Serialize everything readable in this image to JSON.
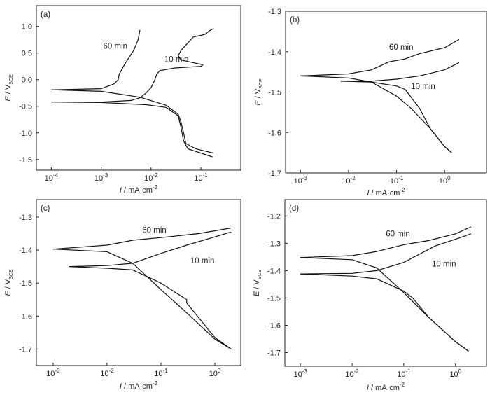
{
  "chart_data": [
    {
      "type": "line",
      "panel_label": "(a)",
      "xlabel": {
        "symbol": "I",
        "unit": " / mA·cm",
        "exp": "-2"
      },
      "ylabel": {
        "symbol": "E",
        "unit": " / V",
        "sub": "SCE"
      },
      "xscale": "log",
      "xlim_log10": [
        -4.3,
        -0.2
      ],
      "ylim": [
        -1.7,
        1.39
      ],
      "x_ticks": [
        {
          "log": -4,
          "base": "10",
          "exp": "-4"
        },
        {
          "log": -3,
          "base": "10",
          "exp": "-3"
        },
        {
          "log": -2,
          "base": "10",
          "exp": "-2"
        },
        {
          "log": -1,
          "base": "10",
          "exp": "-1"
        }
      ],
      "y_ticks": [
        {
          "v": 1.0,
          "label": "1.0"
        },
        {
          "v": 0.5,
          "label": "0.5"
        },
        {
          "v": 0.0,
          "label": "0.0"
        },
        {
          "v": -0.5,
          "label": "-0.5"
        },
        {
          "v": -1.0,
          "label": "-1.0"
        },
        {
          "v": -1.5,
          "label": "-1.5"
        }
      ],
      "series": [
        {
          "name": "60 min",
          "label_at": [
            0.0011,
            0.58
          ],
          "points": [
            [
              0.006,
              0.93
            ],
            [
              0.0055,
              0.75
            ],
            [
              0.0045,
              0.55
            ],
            [
              0.003,
              0.3
            ],
            [
              0.0023,
              0.1
            ],
            [
              0.0022,
              0.0
            ],
            [
              0.0018,
              -0.08
            ],
            [
              0.001,
              -0.17
            ],
            [
              0.0001,
              -0.19
            ],
            [
              0.001,
              -0.22
            ],
            [
              0.006,
              -0.33
            ],
            [
              0.02,
              -0.48
            ],
            [
              0.035,
              -0.65
            ],
            [
              0.04,
              -0.8
            ],
            [
              0.045,
              -1.0
            ],
            [
              0.05,
              -1.2
            ],
            [
              0.08,
              -1.3
            ],
            [
              0.18,
              -1.38
            ]
          ]
        },
        {
          "name": "10 min",
          "label_at": [
            0.0185,
            0.33
          ],
          "points": [
            [
              0.18,
              0.96
            ],
            [
              0.15,
              0.92
            ],
            [
              0.12,
              0.85
            ],
            [
              0.07,
              0.8
            ],
            [
              0.05,
              0.65
            ],
            [
              0.04,
              0.55
            ],
            [
              0.035,
              0.45
            ],
            [
              0.04,
              0.37
            ],
            [
              0.07,
              0.32
            ],
            [
              0.11,
              0.28
            ],
            [
              0.1,
              0.25
            ],
            [
              0.03,
              0.22
            ],
            [
              0.015,
              0.17
            ],
            [
              0.013,
              0.1
            ],
            [
              0.012,
              0.0
            ],
            [
              0.01,
              -0.15
            ],
            [
              0.008,
              -0.25
            ],
            [
              0.006,
              -0.34
            ],
            [
              0.004,
              -0.39
            ],
            [
              0.001,
              -0.42
            ],
            [
              0.0001,
              -0.42
            ],
            [
              0.001,
              -0.43
            ],
            [
              0.008,
              -0.47
            ],
            [
              0.02,
              -0.52
            ],
            [
              0.035,
              -0.68
            ],
            [
              0.04,
              -0.9
            ],
            [
              0.045,
              -1.15
            ],
            [
              0.055,
              -1.3
            ],
            [
              0.17,
              -1.45
            ]
          ]
        }
      ]
    },
    {
      "type": "line",
      "panel_label": "(b)",
      "xlabel": {
        "symbol": "I",
        "unit": " / mA·cm",
        "exp": "-2"
      },
      "ylabel": {
        "symbol": "E",
        "unit": " / V",
        "sub": "SCE"
      },
      "xscale": "log",
      "xlim_log10": [
        -3.31,
        0.87
      ],
      "ylim": [
        -1.7,
        -1.3
      ],
      "x_ticks": [
        {
          "log": -3,
          "base": "10",
          "exp": "-3"
        },
        {
          "log": -2,
          "base": "10",
          "exp": "-2"
        },
        {
          "log": -1,
          "base": "10",
          "exp": "-1"
        },
        {
          "log": 0,
          "base": "10",
          "exp": "0"
        }
      ],
      "y_ticks": [
        {
          "v": -1.3,
          "label": "-1.3"
        },
        {
          "v": -1.4,
          "label": "-1.4"
        },
        {
          "v": -1.5,
          "label": "-1.5"
        },
        {
          "v": -1.6,
          "label": "-1.6"
        },
        {
          "v": -1.7,
          "label": "-1.7"
        }
      ],
      "series": [
        {
          "name": "60 min",
          "label_at": [
            0.07,
            -1.395
          ],
          "points": [
            [
              2,
              -1.37
            ],
            [
              1,
              -1.39
            ],
            [
              0.3,
              -1.405
            ],
            [
              0.15,
              -1.418
            ],
            [
              0.07,
              -1.425
            ],
            [
              0.03,
              -1.445
            ],
            [
              0.01,
              -1.455
            ],
            [
              0.001,
              -1.46
            ],
            [
              0.01,
              -1.465
            ],
            [
              0.03,
              -1.475
            ],
            [
              0.1,
              -1.51
            ],
            [
              0.2,
              -1.54
            ],
            [
              0.5,
              -1.59
            ],
            [
              1,
              -1.635
            ],
            [
              1.4,
              -1.65
            ]
          ]
        },
        {
          "name": "10 min",
          "label_at": [
            0.2,
            -1.492
          ],
          "points": [
            [
              2,
              -1.427
            ],
            [
              1,
              -1.445
            ],
            [
              0.3,
              -1.46
            ],
            [
              0.1,
              -1.468
            ],
            [
              0.03,
              -1.473
            ],
            [
              0.007,
              -1.473
            ],
            [
              0.03,
              -1.475
            ],
            [
              0.1,
              -1.485
            ],
            [
              0.15,
              -1.493
            ],
            [
              0.3,
              -1.54
            ],
            [
              0.5,
              -1.59
            ],
            [
              1,
              -1.635
            ],
            [
              1.4,
              -1.65
            ]
          ]
        }
      ]
    },
    {
      "type": "line",
      "panel_label": "(c)",
      "xlabel": {
        "symbol": "I",
        "unit": " / mA·cm",
        "exp": "-2"
      },
      "ylabel": {
        "symbol": "E",
        "unit": " / V",
        "sub": "SCE"
      },
      "xscale": "log",
      "xlim_log10": [
        -3.31,
        0.48
      ],
      "ylim": [
        -1.75,
        -1.247
      ],
      "x_ticks": [
        {
          "log": -3,
          "base": "10",
          "exp": "-3"
        },
        {
          "log": -2,
          "base": "10",
          "exp": "-2"
        },
        {
          "log": -1,
          "base": "10",
          "exp": "-1"
        },
        {
          "log": 0,
          "base": "10",
          "exp": "0"
        }
      ],
      "y_ticks": [
        {
          "v": -1.3,
          "label": "-1.3"
        },
        {
          "v": -1.4,
          "label": "-1.4"
        },
        {
          "v": -1.5,
          "label": "-1.5"
        },
        {
          "v": -1.6,
          "label": "-1.6"
        },
        {
          "v": -1.7,
          "label": "-1.7"
        }
      ],
      "series": [
        {
          "name": "60 min",
          "label_at": [
            0.045,
            -1.348
          ],
          "points": [
            [
              2,
              -1.333
            ],
            [
              0.5,
              -1.35
            ],
            [
              0.1,
              -1.362
            ],
            [
              0.03,
              -1.37
            ],
            [
              0.01,
              -1.385
            ],
            [
              0.001,
              -1.397
            ],
            [
              0.01,
              -1.405
            ],
            [
              0.03,
              -1.44
            ],
            [
              0.1,
              -1.52
            ],
            [
              0.3,
              -1.59
            ],
            [
              1,
              -1.67
            ],
            [
              2,
              -1.7
            ]
          ]
        },
        {
          "name": "10 min",
          "label_at": [
            0.35,
            -1.44
          ],
          "points": [
            [
              2,
              -1.345
            ],
            [
              1,
              -1.36
            ],
            [
              0.3,
              -1.385
            ],
            [
              0.1,
              -1.41
            ],
            [
              0.03,
              -1.44
            ],
            [
              0.01,
              -1.447
            ],
            [
              0.002,
              -1.45
            ],
            [
              0.01,
              -1.455
            ],
            [
              0.03,
              -1.46
            ],
            [
              0.1,
              -1.5
            ],
            [
              0.3,
              -1.55
            ],
            [
              0.3,
              -1.56
            ],
            [
              1,
              -1.665
            ],
            [
              2,
              -1.7
            ]
          ]
        }
      ]
    },
    {
      "type": "line",
      "panel_label": "(d)",
      "xlabel": {
        "symbol": "I",
        "unit": " / mA·cm",
        "exp": "-2"
      },
      "ylabel": {
        "symbol": "E",
        "unit": " / V",
        "sub": "SCE"
      },
      "xscale": "log",
      "xlim_log10": [
        -3.3,
        0.6
      ],
      "ylim": [
        -1.75,
        -1.14
      ],
      "x_ticks": [
        {
          "log": -3,
          "base": "10",
          "exp": "-3"
        },
        {
          "log": -2,
          "base": "10",
          "exp": "-2"
        },
        {
          "log": -1,
          "base": "10",
          "exp": "-1"
        },
        {
          "log": 0,
          "base": "10",
          "exp": "0"
        }
      ],
      "y_ticks": [
        {
          "v": -1.2,
          "label": "-1.2"
        },
        {
          "v": -1.3,
          "label": "-1.3"
        },
        {
          "v": -1.4,
          "label": "-1.4"
        },
        {
          "v": -1.5,
          "label": "-1.5"
        },
        {
          "v": -1.6,
          "label": "-1.6"
        },
        {
          "v": -1.7,
          "label": "-1.7"
        }
      ],
      "series": [
        {
          "name": "60 min",
          "label_at": [
            0.045,
            -1.275
          ],
          "points": [
            [
              2,
              -1.24
            ],
            [
              1,
              -1.265
            ],
            [
              0.3,
              -1.29
            ],
            [
              0.1,
              -1.305
            ],
            [
              0.03,
              -1.33
            ],
            [
              0.01,
              -1.345
            ],
            [
              0.001,
              -1.352
            ],
            [
              0.01,
              -1.36
            ],
            [
              0.03,
              -1.39
            ],
            [
              0.1,
              -1.48
            ],
            [
              0.3,
              -1.57
            ],
            [
              1,
              -1.66
            ],
            [
              1.8,
              -1.695
            ]
          ]
        },
        {
          "name": "10 min",
          "label_at": [
            0.35,
            -1.385
          ],
          "points": [
            [
              2,
              -1.265
            ],
            [
              1,
              -1.285
            ],
            [
              0.4,
              -1.31
            ],
            [
              0.2,
              -1.34
            ],
            [
              0.1,
              -1.37
            ],
            [
              0.03,
              -1.4
            ],
            [
              0.01,
              -1.41
            ],
            [
              0.001,
              -1.412
            ],
            [
              0.01,
              -1.42
            ],
            [
              0.03,
              -1.43
            ],
            [
              0.1,
              -1.475
            ],
            [
              0.15,
              -1.5
            ],
            [
              0.3,
              -1.57
            ],
            [
              1,
              -1.66
            ],
            [
              1.8,
              -1.695
            ]
          ]
        }
      ]
    }
  ]
}
